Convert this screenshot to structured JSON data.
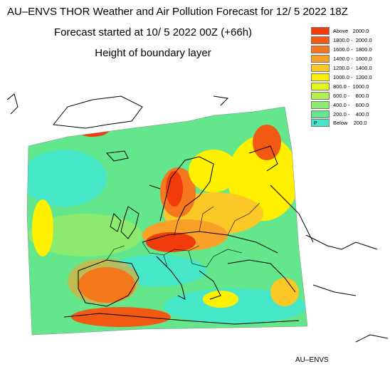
{
  "header": {
    "title": "AU–ENVS THOR Weather and Air Pollution Forecast for 12/ 5 2022  18Z",
    "subtitle": "Forecast started at 10/ 5 2022  00Z (+66h)",
    "field": "Height of boundary layer"
  },
  "legend": {
    "items": [
      {
        "label": "Above   2000.0",
        "color": "#f03c0a"
      },
      {
        "label": "1800.0 -  2000.0",
        "color": "#f25a14"
      },
      {
        "label": "1600.0 -  1800.0",
        "color": "#f5781e"
      },
      {
        "label": "1400.0 -  1600.0",
        "color": "#f8a028"
      },
      {
        "label": "1200.0 -  1400.0",
        "color": "#fbc828"
      },
      {
        "label": "1000.0 -  1200.0",
        "color": "#fff000"
      },
      {
        "label": "800.0 -  1000.0",
        "color": "#e6f51e"
      },
      {
        "label": "600.0 -    800.0",
        "color": "#b4f050"
      },
      {
        "label": "400.0 -    600.0",
        "color": "#8ceb6e"
      },
      {
        "label": "200.0 -    400.0",
        "color": "#64e68c"
      },
      {
        "label": "Below    200.0",
        "color": "#46e6c8",
        "marker": "P"
      }
    ]
  },
  "credit": "AU–ENVS"
}
